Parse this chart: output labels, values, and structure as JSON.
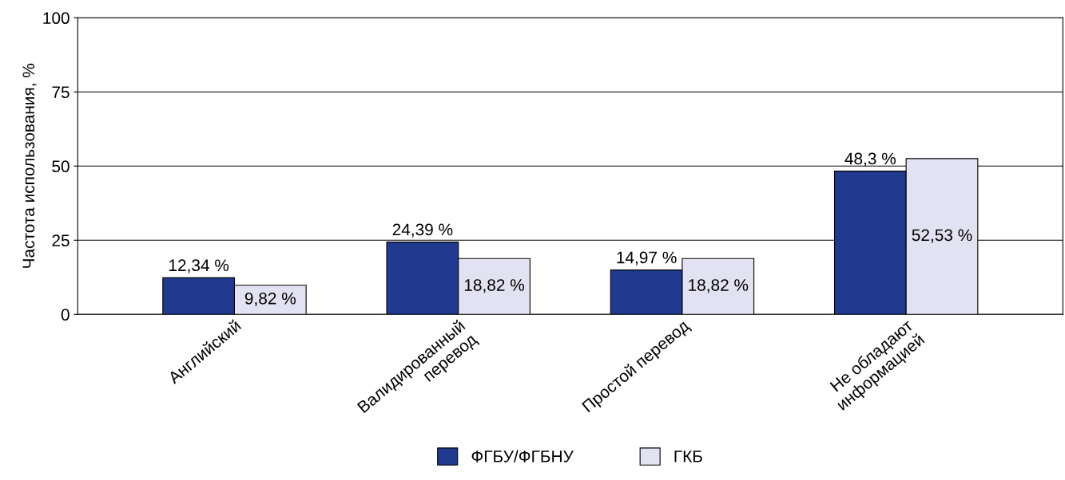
{
  "chart_data": {
    "type": "bar",
    "ylabel": "Частота использования, %",
    "categories": [
      "Английский",
      "Валидированный\nперевод",
      "Простой перевод",
      "Не обладают\nинформацией"
    ],
    "series": [
      {
        "name": "ФГБУ/ФГБНУ",
        "color": "#1f3a8f",
        "values": [
          12.34,
          24.39,
          14.97,
          48.3
        ],
        "value_labels": [
          "12,34 %",
          "24,39 %",
          "14,97 %",
          "48,3 %"
        ]
      },
      {
        "name": "ГКБ",
        "color": "#e2e2f2",
        "values": [
          9.82,
          18.82,
          18.82,
          52.53
        ],
        "value_labels": [
          "9,82 %",
          "18,82 %",
          "18,82 %",
          "52,53 %"
        ]
      }
    ],
    "ylim": [
      0,
      100
    ],
    "yticks": [
      0,
      25,
      50,
      75,
      100
    ],
    "grid": "y",
    "legend": "bottom"
  }
}
